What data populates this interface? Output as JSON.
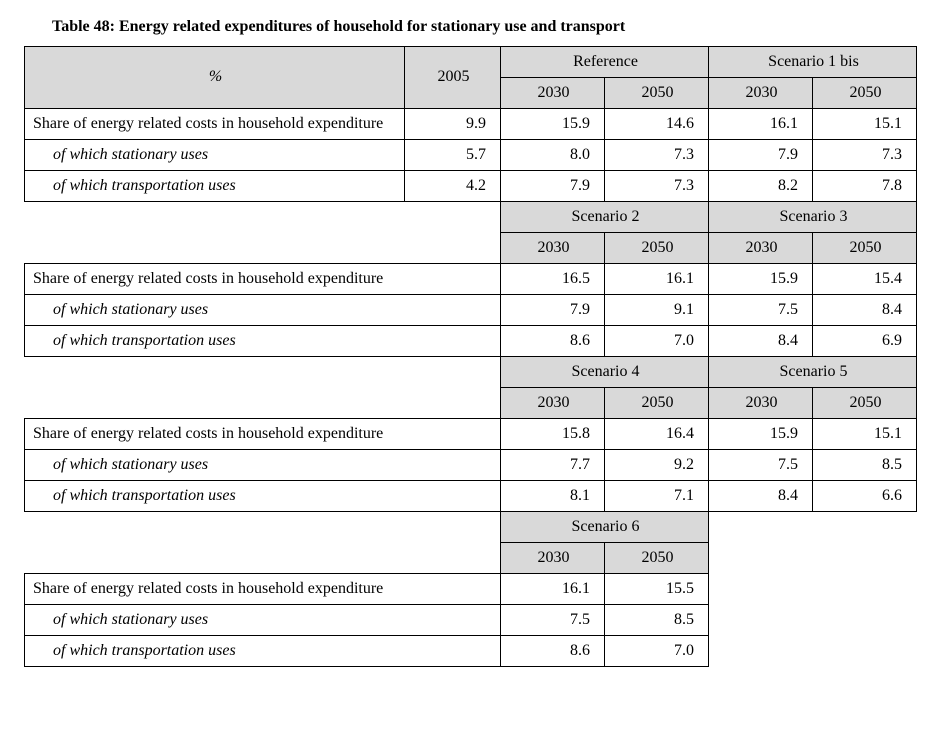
{
  "title": "Table 48: Energy related expenditures of household for stationary use and transport",
  "header": {
    "percent": "%",
    "y2005": "2005",
    "y2030": "2030",
    "y2050": "2050"
  },
  "scenario_labels": {
    "reference": "Reference",
    "s1bis": "Scenario 1 bis",
    "s2": "Scenario 2",
    "s3": "Scenario 3",
    "s4": "Scenario 4",
    "s5": "Scenario 5",
    "s6": "Scenario 6"
  },
  "row_labels": {
    "share": "Share of energy related costs in household expenditure",
    "stationary": "of which stationary uses",
    "transport": "of which transportation uses"
  },
  "block1": {
    "share": {
      "y2005": "9.9",
      "a2030": "15.9",
      "a2050": "14.6",
      "b2030": "16.1",
      "b2050": "15.1"
    },
    "stationary": {
      "y2005": "5.7",
      "a2030": "8.0",
      "a2050": "7.3",
      "b2030": "7.9",
      "b2050": "7.3"
    },
    "transport": {
      "y2005": "4.2",
      "a2030": "7.9",
      "a2050": "7.3",
      "b2030": "8.2",
      "b2050": "7.8"
    }
  },
  "block2": {
    "share": {
      "a2030": "16.5",
      "a2050": "16.1",
      "b2030": "15.9",
      "b2050": "15.4"
    },
    "stationary": {
      "a2030": "7.9",
      "a2050": "9.1",
      "b2030": "7.5",
      "b2050": "8.4"
    },
    "transport": {
      "a2030": "8.6",
      "a2050": "7.0",
      "b2030": "8.4",
      "b2050": "6.9"
    }
  },
  "block3": {
    "share": {
      "a2030": "15.8",
      "a2050": "16.4",
      "b2030": "15.9",
      "b2050": "15.1"
    },
    "stationary": {
      "a2030": "7.7",
      "a2050": "9.2",
      "b2030": "7.5",
      "b2050": "8.5"
    },
    "transport": {
      "a2030": "8.1",
      "a2050": "7.1",
      "b2030": "8.4",
      "b2050": "6.6"
    }
  },
  "block4": {
    "share": {
      "a2030": "16.1",
      "a2050": "15.5"
    },
    "stationary": {
      "a2030": "7.5",
      "a2050": "8.5"
    },
    "transport": {
      "a2030": "8.6",
      "a2050": "7.0"
    }
  },
  "style": {
    "grey": "#d9d9d9",
    "border": "#000000",
    "font": "Times New Roman",
    "base_fontsize_pt": 12
  }
}
